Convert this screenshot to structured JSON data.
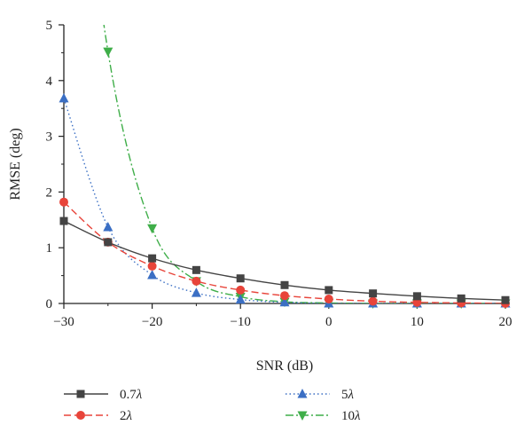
{
  "chart_data": {
    "type": "line",
    "xlabel": "SNR (dB)",
    "ylabel": "RMSE (deg)",
    "xlim": [
      -30,
      20
    ],
    "ylim": [
      0,
      5
    ],
    "x_ticks": [
      -30,
      -20,
      -10,
      0,
      10,
      20
    ],
    "x_tick_labels": [
      "−30",
      "−20",
      "−10",
      "0",
      "10",
      "20"
    ],
    "y_ticks": [
      0,
      1,
      2,
      3,
      4,
      5
    ],
    "y_tick_labels": [
      "0",
      "1",
      "2",
      "3",
      "4",
      "5"
    ],
    "grid": false,
    "legend_position": "bottom",
    "series": [
      {
        "name": "0.7λ",
        "name_number": "0.7",
        "name_symbol": "λ",
        "color": "#444444",
        "marker": "square",
        "dash": "solid",
        "x": [
          -30,
          -25,
          -20,
          -15,
          -10,
          -5,
          0,
          5,
          10,
          15,
          20
        ],
        "values": [
          1.48,
          1.1,
          0.81,
          0.6,
          0.45,
          0.33,
          0.24,
          0.18,
          0.13,
          0.09,
          0.06
        ]
      },
      {
        "name": "2λ",
        "name_number": "2",
        "name_symbol": "λ",
        "color": "#e8443a",
        "marker": "circle",
        "dash": "dashed",
        "x": [
          -30,
          -25,
          -20,
          -15,
          -10,
          -5,
          0,
          5,
          10,
          15,
          20
        ],
        "values": [
          1.82,
          1.1,
          0.67,
          0.4,
          0.24,
          0.14,
          0.08,
          0.04,
          0.02,
          0.01,
          0.0
        ]
      },
      {
        "name": "5λ",
        "name_number": "5",
        "name_symbol": "λ",
        "color": "#3b6fc4",
        "marker": "triangle-up",
        "dash": "dotted",
        "x": [
          -30,
          -25,
          -20,
          -15,
          -10,
          -5,
          0,
          5,
          10,
          15,
          20
        ],
        "values": [
          3.68,
          1.37,
          0.51,
          0.19,
          0.07,
          0.02,
          0.0,
          0.0,
          0.0,
          0.0,
          0.0
        ]
      },
      {
        "name": "10λ",
        "name_number": "10",
        "name_symbol": "λ",
        "color": "#3fae49",
        "marker": "triangle-down",
        "dash": "dashdot",
        "x": [
          -30,
          -25,
          -20,
          -15,
          -10,
          -5,
          0,
          5,
          10,
          15,
          20
        ],
        "values": [
          null,
          4.52,
          1.35,
          0.4,
          0.12,
          0.03,
          0.01,
          0.0,
          0.0,
          0.0,
          0.0
        ]
      }
    ]
  }
}
